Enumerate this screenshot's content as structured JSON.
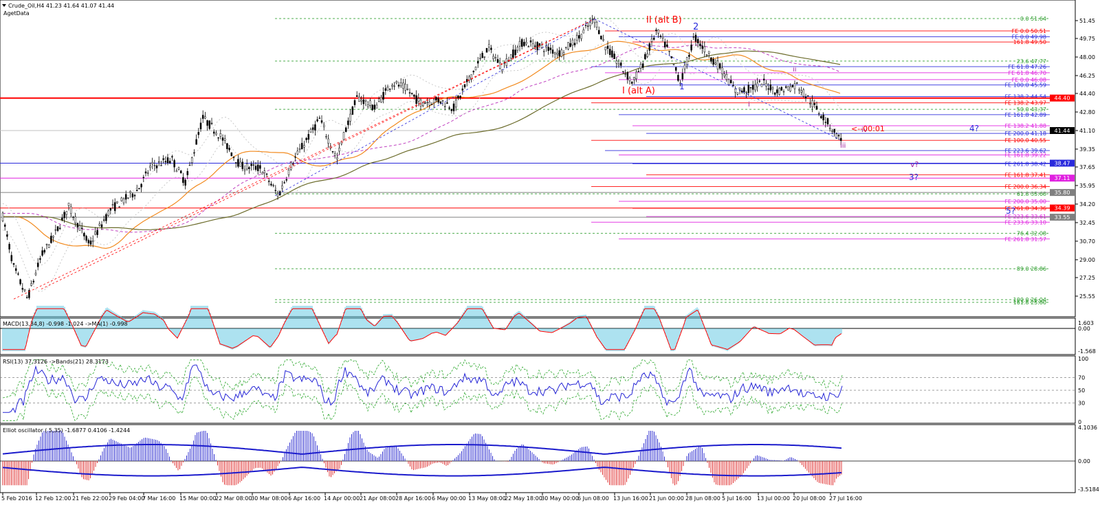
{
  "header": {
    "symbol_line": "Crude_Oil,H4  41.23 41.64 41.07 41.44",
    "indicator_name": "AgetData"
  },
  "colors": {
    "background": "#ffffff",
    "candle": "#000000",
    "ma_fast": "#f28a1e",
    "ma_slow": "#6b6b2a",
    "ma_magenta": "#c040c0",
    "fib_green": "#2e9e2e",
    "red_line": "#ff0000",
    "blue_line": "#2a2adc",
    "macd_hist": "#5bc6e0",
    "macd_signal": "#ff0000",
    "rsi_line": "#2424d6",
    "rsi_bands": "#2ea82e",
    "elliot_pos": "#3030d0",
    "elliot_neg": "#e03030",
    "price_badge": "#000000"
  },
  "price_axis": [
    "51.45",
    "49.75",
    "48.00",
    "46.25",
    "44.40",
    "42.80",
    "41.10",
    "39.35",
    "37.65",
    "35.95",
    "34.20",
    "32.45",
    "30.70",
    "29.00",
    "27.25",
    "25.55"
  ],
  "price_badges": [
    {
      "value": "44.40",
      "color": "#ff0000",
      "text": "#ffffff"
    },
    {
      "value": "41.44",
      "color": "#000000",
      "text": "#ffffff"
    },
    {
      "value": "38.47",
      "color": "#2a2adc",
      "text": "#ffffff"
    },
    {
      "value": "37.11",
      "color": "#e020e0",
      "text": "#ffffff"
    },
    {
      "value": "35.80",
      "color": "#808080",
      "text": "#ffffff"
    },
    {
      "value": "34.39",
      "color": "#ff0000",
      "text": "#ffffff"
    },
    {
      "value": "33.55",
      "color": "#808080",
      "text": "#ffffff"
    }
  ],
  "fib_labels": [
    {
      "text": "0.0  51.64",
      "color": "#2e9e2e",
      "price": 51.64
    },
    {
      "text": "FE 0.0  50.51",
      "color": "#ff0000",
      "price": 50.51
    },
    {
      "text": "FE 0.0  49.98",
      "color": "#2a2adc",
      "price": 49.98
    },
    {
      "text": "161.8  49.50",
      "color": "#ff0000",
      "price": 49.5
    },
    {
      "text": "23.6  47.77",
      "color": "#2e9e2e",
      "price": 47.77
    },
    {
      "text": "FE 61.8  47.26",
      "color": "#2a2adc",
      "price": 47.26
    },
    {
      "text": "FE 61.8  46.70",
      "color": "#e020e0",
      "price": 46.7
    },
    {
      "text": "FE 0.0  46.08",
      "color": "#e020e0",
      "price": 46.08
    },
    {
      "text": "FE 100.0  45.59",
      "color": "#2a2adc",
      "price": 45.59
    },
    {
      "text": "FE 138.2  44.54",
      "color": "#2a2adc",
      "price": 44.54
    },
    {
      "text": "FE 138.2  43.97",
      "color": "#ff0000",
      "price": 43.97
    },
    {
      "text": "50.0  43.37",
      "color": "#2e9e2e",
      "price": 43.37
    },
    {
      "text": "FE 161.8  42.89",
      "color": "#2a2adc",
      "price": 42.89
    },
    {
      "text": "FE 138.2  41.88",
      "color": "#e020e0",
      "price": 41.88
    },
    {
      "text": "FE 200.0  41.18",
      "color": "#2a2adc",
      "price": 41.18
    },
    {
      "text": "FE 100.0  40.55",
      "color": "#ff0000",
      "price": 40.55
    },
    {
      "text": "FE 223.6  39.62",
      "color": "#2a2adc",
      "price": 39.62
    },
    {
      "text": "FE 161.8  39.22",
      "color": "#e020e0",
      "price": 39.22
    },
    {
      "text": "FE 261.8  38.42",
      "color": "#2a2adc",
      "price": 38.42
    },
    {
      "text": "FE 161.8  37.41",
      "color": "#ff0000",
      "price": 37.41
    },
    {
      "text": "FE 200.0  36.34",
      "color": "#ff0000",
      "price": 36.34
    },
    {
      "text": "61.8  35.68",
      "color": "#2e9e2e",
      "price": 35.68
    },
    {
      "text": "FE 200.0  35.00",
      "color": "#e020e0",
      "price": 35.0
    },
    {
      "text": "FE 261.8  34.36",
      "color": "#ff0000",
      "price": 34.36
    },
    {
      "text": "FE 223.6  33.61",
      "color": "#e020e0",
      "price": 33.61
    },
    {
      "text": "FE 233.6  33.10",
      "color": "#e020e0",
      "price": 33.1
    },
    {
      "text": "76.4  32.08",
      "color": "#2e9e2e",
      "price": 32.08
    },
    {
      "text": "FE 261.8  31.57",
      "color": "#e020e0",
      "price": 31.57
    },
    {
      "text": "89.0  28.86",
      "color": "#2e9e2e",
      "price": 28.86
    },
    {
      "text": "100.0  26.04",
      "color": "#2e9e2e",
      "price": 26.04
    },
    {
      "text": "161.8  25.80",
      "color": "#2e9e2e",
      "price": 25.8
    }
  ],
  "wave_labels": [
    {
      "text": "II (alt B)",
      "color": "#ff0000",
      "size": 13
    },
    {
      "text": "I (alt A)",
      "color": "#ff0000",
      "size": 13
    },
    {
      "text": "2",
      "color": "#2a2adc",
      "size": 13
    },
    {
      "text": "1",
      "color": "#2a2adc",
      "size": 12
    },
    {
      "text": "ii",
      "color": "#a020a0",
      "size": 10
    },
    {
      "text": "i",
      "color": "#a020a0",
      "size": 10
    },
    {
      "text": "iv",
      "color": "#a020a0",
      "size": 10
    },
    {
      "text": "iii",
      "color": "#a020a0",
      "size": 10
    },
    {
      "text": "<--00:01",
      "color": "#ff0000",
      "size": 11
    },
    {
      "text": "4?",
      "color": "#2a2adc",
      "size": 12
    },
    {
      "text": "v?",
      "color": "#a020a0",
      "size": 11
    },
    {
      "text": "3?",
      "color": "#2a2adc",
      "size": 12
    },
    {
      "text": "5?",
      "color": "#2a2adc",
      "size": 12
    }
  ],
  "macd": {
    "label": "MACD(13,34,8) -0.998 -1.024 ->MA(1) -0.998",
    "axis": [
      "1.603",
      "0.00",
      "-1.568"
    ]
  },
  "rsi": {
    "label": "RSI(13) 37.3126  ->Bands(21) 28.3173",
    "axis": [
      "100",
      "70",
      "50",
      "30",
      "0"
    ]
  },
  "elliot": {
    "label": "Elliot oscillator ( 5,35) -1.6877 0.4106 -1.4244",
    "axis": [
      "4.1036",
      "0.00",
      "-3.5184"
    ]
  },
  "time_axis": [
    "5 Feb 2016",
    "12 Feb 12:00",
    "21 Feb 22:00",
    "29 Feb 04:00",
    "7 Mar 16:00",
    "15 Mar 00:00",
    "22 Mar 08:00",
    "30 Mar 08:00",
    "6 Apr 16:00",
    "14 Apr 00:00",
    "21 Apr 08:00",
    "28 Apr 16:00",
    "6 May 00:00",
    "13 May 08:00",
    "22 May 18:00",
    "30 May 00:00",
    "6 Jun 08:00",
    "13 Jun 16:00",
    "21 Jun 00:00",
    "28 Jun 08:00",
    "5 Jul 16:00",
    "13 Jul 00:00",
    "20 Jul 08:00",
    "27 Jul 16:00"
  ]
}
